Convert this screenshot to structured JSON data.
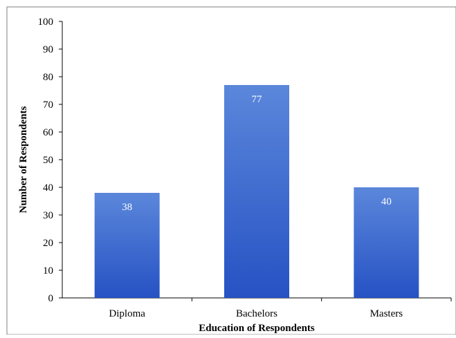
{
  "chart_data": {
    "type": "bar",
    "title": "",
    "xlabel": "Education of Respondents",
    "ylabel": "Number of Respondents",
    "categories": [
      "Diploma",
      "Bachelors",
      "Masters"
    ],
    "values": [
      38,
      77,
      40
    ],
    "data_labels": [
      "38",
      "77",
      "40"
    ],
    "ylim": [
      0,
      100
    ],
    "yticks": [
      0,
      10,
      20,
      30,
      40,
      50,
      60,
      70,
      80,
      90,
      100
    ],
    "grid": false,
    "legend": "none",
    "bar_color_top": "#5b87db",
    "bar_color_bottom": "#2652c4",
    "frame_color": "#7f7f7f"
  }
}
